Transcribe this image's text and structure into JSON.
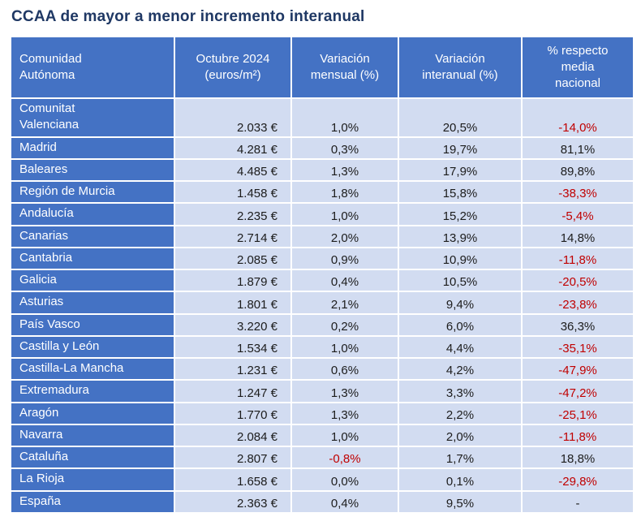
{
  "title": "CCAA de mayor a menor incremento interanual",
  "colors": {
    "title_color": "#1F3864",
    "header_bg": "#4472C4",
    "cell_bg": "#D2DCF1",
    "negative": "#C00000"
  },
  "table": {
    "headers": [
      "Comunidad\nAutónoma",
      "Octubre 2024\n(euros/m²)",
      "Variación\nmensual (%)",
      "Variación\ninteranual (%)",
      "% respecto\nmedia\nnacional"
    ],
    "rows": [
      {
        "name": "Comunitat\nValenciana",
        "price": "2.033 €",
        "monthly": "1,0%",
        "yoy": "20,5%",
        "vs_national": "-14,0%"
      },
      {
        "name": "Madrid",
        "price": "4.281 €",
        "monthly": "0,3%",
        "yoy": "19,7%",
        "vs_national": "81,1%"
      },
      {
        "name": "Baleares",
        "price": "4.485 €",
        "monthly": "1,3%",
        "yoy": "17,9%",
        "vs_national": "89,8%"
      },
      {
        "name": "Región de Murcia",
        "price": "1.458 €",
        "monthly": "1,8%",
        "yoy": "15,8%",
        "vs_national": "-38,3%"
      },
      {
        "name": "Andalucía",
        "price": "2.235 €",
        "monthly": "1,0%",
        "yoy": "15,2%",
        "vs_national": "-5,4%"
      },
      {
        "name": "Canarias",
        "price": "2.714 €",
        "monthly": "2,0%",
        "yoy": "13,9%",
        "vs_national": "14,8%"
      },
      {
        "name": "Cantabria",
        "price": "2.085 €",
        "monthly": "0,9%",
        "yoy": "10,9%",
        "vs_national": "-11,8%"
      },
      {
        "name": "Galicia",
        "price": "1.879 €",
        "monthly": "0,4%",
        "yoy": "10,5%",
        "vs_national": "-20,5%"
      },
      {
        "name": "Asturias",
        "price": "1.801 €",
        "monthly": "2,1%",
        "yoy": "9,4%",
        "vs_national": "-23,8%"
      },
      {
        "name": "País Vasco",
        "price": "3.220 €",
        "monthly": "0,2%",
        "yoy": "6,0%",
        "vs_national": "36,3%"
      },
      {
        "name": "Castilla y León",
        "price": "1.534 €",
        "monthly": "1,0%",
        "yoy": "4,4%",
        "vs_national": "-35,1%"
      },
      {
        "name": "Castilla-La Mancha",
        "price": "1.231 €",
        "monthly": "0,6%",
        "yoy": "4,2%",
        "vs_national": "-47,9%"
      },
      {
        "name": "Extremadura",
        "price": "1.247 €",
        "monthly": "1,3%",
        "yoy": "3,3%",
        "vs_national": "-47,2%"
      },
      {
        "name": "Aragón",
        "price": "1.770 €",
        "monthly": "1,3%",
        "yoy": "2,2%",
        "vs_national": "-25,1%"
      },
      {
        "name": "Navarra",
        "price": "2.084 €",
        "monthly": "1,0%",
        "yoy": "2,0%",
        "vs_national": "-11,8%"
      },
      {
        "name": "Cataluña",
        "price": "2.807 €",
        "monthly": "-0,8%",
        "yoy": "1,7%",
        "vs_national": "18,8%"
      },
      {
        "name": "La Rioja",
        "price": "1.658 €",
        "monthly": "0,0%",
        "yoy": "0,1%",
        "vs_national": "-29,8%"
      },
      {
        "name": "España",
        "price": "2.363 €",
        "monthly": "0,4%",
        "yoy": "9,5%",
        "vs_national": "-"
      }
    ]
  },
  "chart_data": {
    "type": "table",
    "title": "CCAA de mayor a menor incremento interanual",
    "columns": [
      "Comunidad Autónoma",
      "Octubre 2024 (euros/m²)",
      "Variación mensual (%)",
      "Variación interanual (%)",
      "% respecto media nacional"
    ],
    "rows": [
      [
        "Comunitat Valenciana",
        2033,
        1.0,
        20.5,
        -14.0
      ],
      [
        "Madrid",
        4281,
        0.3,
        19.7,
        81.1
      ],
      [
        "Baleares",
        4485,
        1.3,
        17.9,
        89.8
      ],
      [
        "Región de Murcia",
        1458,
        1.8,
        15.8,
        -38.3
      ],
      [
        "Andalucía",
        2235,
        1.0,
        15.2,
        -5.4
      ],
      [
        "Canarias",
        2714,
        2.0,
        13.9,
        14.8
      ],
      [
        "Cantabria",
        2085,
        0.9,
        10.9,
        -11.8
      ],
      [
        "Galicia",
        1879,
        0.4,
        10.5,
        -20.5
      ],
      [
        "Asturias",
        1801,
        2.1,
        9.4,
        -23.8
      ],
      [
        "País Vasco",
        3220,
        0.2,
        6.0,
        36.3
      ],
      [
        "Castilla y León",
        1534,
        1.0,
        4.4,
        -35.1
      ],
      [
        "Castilla-La Mancha",
        1231,
        0.6,
        4.2,
        -47.9
      ],
      [
        "Extremadura",
        1247,
        1.3,
        3.3,
        -47.2
      ],
      [
        "Aragón",
        1770,
        1.3,
        2.2,
        -25.1
      ],
      [
        "Navarra",
        2084,
        1.0,
        2.0,
        -11.8
      ],
      [
        "Cataluña",
        2807,
        -0.8,
        1.7,
        18.8
      ],
      [
        "La Rioja",
        1658,
        0.0,
        0.1,
        -29.8
      ],
      [
        "España",
        2363,
        0.4,
        9.5,
        null
      ]
    ]
  }
}
